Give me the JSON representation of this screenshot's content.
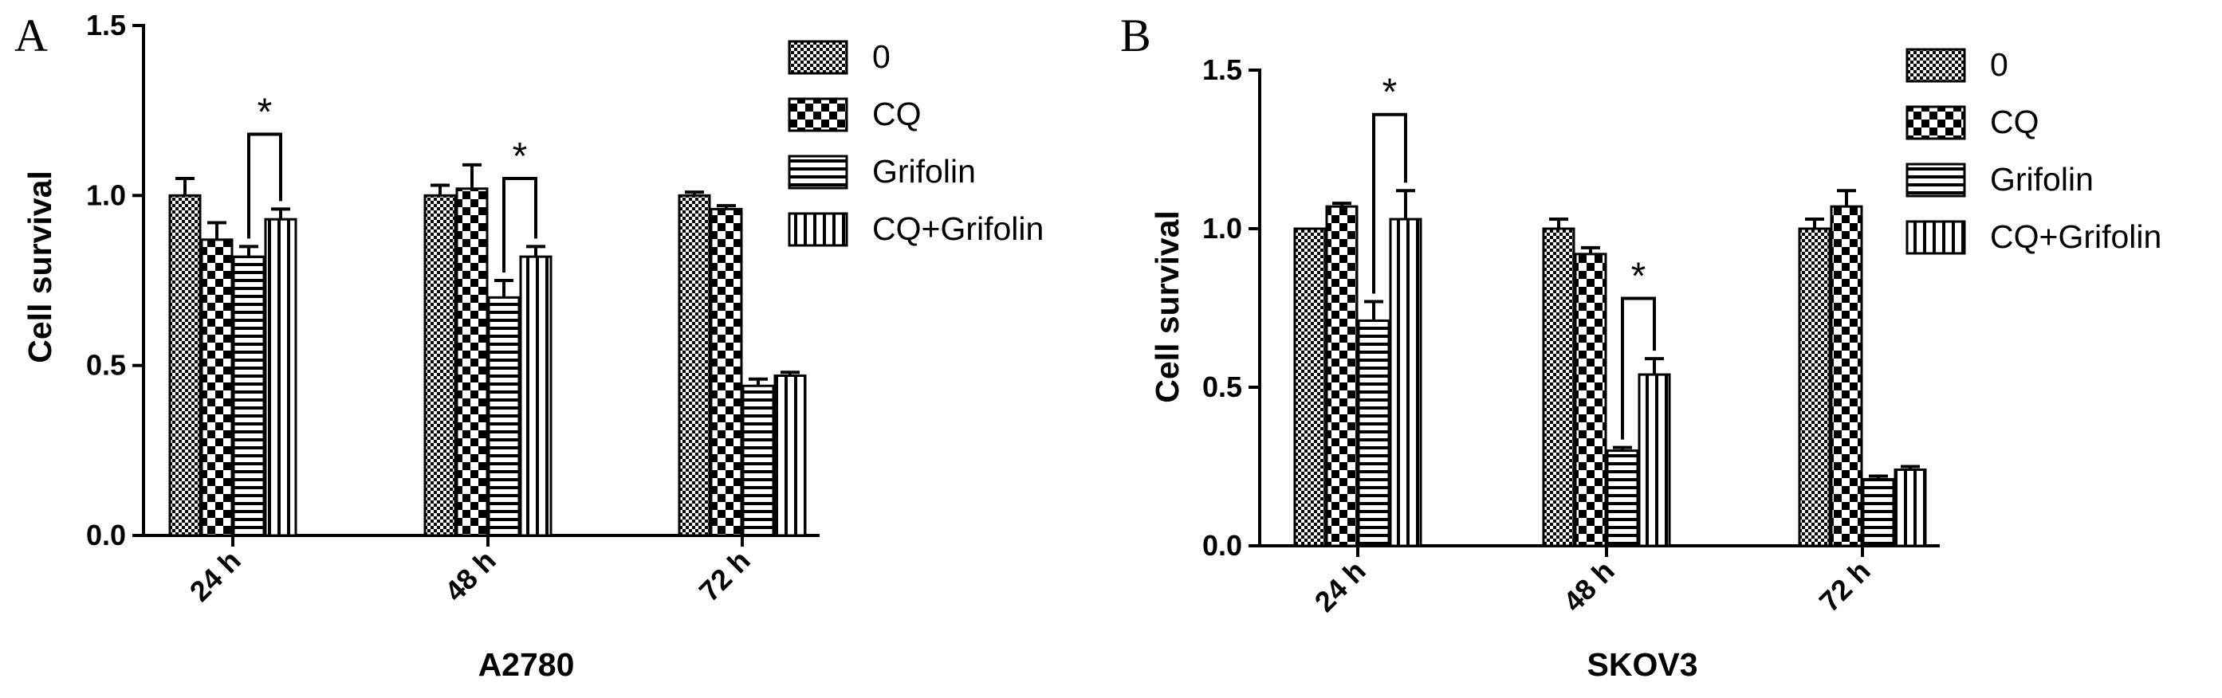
{
  "figure": {
    "panel_letters": [
      "A",
      "B"
    ]
  },
  "colors": {
    "ink": "#000000",
    "paper": "#ffffff"
  },
  "chart_data": [
    {
      "type": "bar",
      "panel": "A",
      "xlabel": "A2780",
      "ylabel": "Cell survival",
      "ylim": [
        0,
        1.5
      ],
      "yticks": [
        "0.0",
        "0.5",
        "1.0",
        "1.5"
      ],
      "categories": [
        "24 h",
        "48 h",
        "72 h"
      ],
      "legend": "top-right",
      "series": [
        {
          "name": "0",
          "pattern": "checker-fine",
          "values": [
            1.0,
            1.0,
            1.0
          ],
          "errors": [
            0.05,
            0.03,
            0.01
          ]
        },
        {
          "name": "CQ",
          "pattern": "checker-coarse",
          "values": [
            0.87,
            1.02,
            0.96
          ],
          "errors": [
            0.05,
            0.07,
            0.01
          ]
        },
        {
          "name": "Grifolin",
          "pattern": "horizontal-stripes",
          "values": [
            0.82,
            0.7,
            0.44
          ],
          "errors": [
            0.03,
            0.05,
            0.02
          ]
        },
        {
          "name": "CQ+Grifolin",
          "pattern": "vertical-stripes",
          "values": [
            0.93,
            0.82,
            0.47
          ],
          "errors": [
            0.03,
            0.03,
            0.01
          ]
        }
      ],
      "significance": [
        {
          "category": "24 h",
          "between": [
            "Grifolin",
            "CQ+Grifolin"
          ],
          "label": "*",
          "level": 1.18
        },
        {
          "category": "48 h",
          "between": [
            "Grifolin",
            "CQ+Grifolin"
          ],
          "label": "*",
          "level": 1.05
        }
      ]
    },
    {
      "type": "bar",
      "panel": "B",
      "xlabel": "SKOV3",
      "ylabel": "Cell survival",
      "ylim": [
        0,
        1.5
      ],
      "yticks": [
        "0.0",
        "0.5",
        "1.0",
        "1.5"
      ],
      "categories": [
        "24 h",
        "48 h",
        "72 h"
      ],
      "legend": "top-right",
      "series": [
        {
          "name": "0",
          "pattern": "checker-fine",
          "values": [
            1.0,
            1.0,
            1.0
          ],
          "errors": [
            0.0,
            0.03,
            0.03
          ]
        },
        {
          "name": "CQ",
          "pattern": "checker-coarse",
          "values": [
            1.07,
            0.92,
            1.07
          ],
          "errors": [
            0.01,
            0.02,
            0.05
          ]
        },
        {
          "name": "Grifolin",
          "pattern": "horizontal-stripes",
          "values": [
            0.71,
            0.3,
            0.21
          ],
          "errors": [
            0.06,
            0.01,
            0.01
          ]
        },
        {
          "name": "CQ+Grifolin",
          "pattern": "vertical-stripes",
          "values": [
            1.03,
            0.54,
            0.24
          ],
          "errors": [
            0.09,
            0.05,
            0.01
          ]
        }
      ],
      "significance": [
        {
          "category": "24 h",
          "between": [
            "Grifolin",
            "CQ+Grifolin"
          ],
          "label": "*",
          "level": 1.36
        },
        {
          "category": "48 h",
          "between": [
            "Grifolin",
            "CQ+Grifolin"
          ],
          "label": "*",
          "level": 0.78
        }
      ]
    }
  ]
}
